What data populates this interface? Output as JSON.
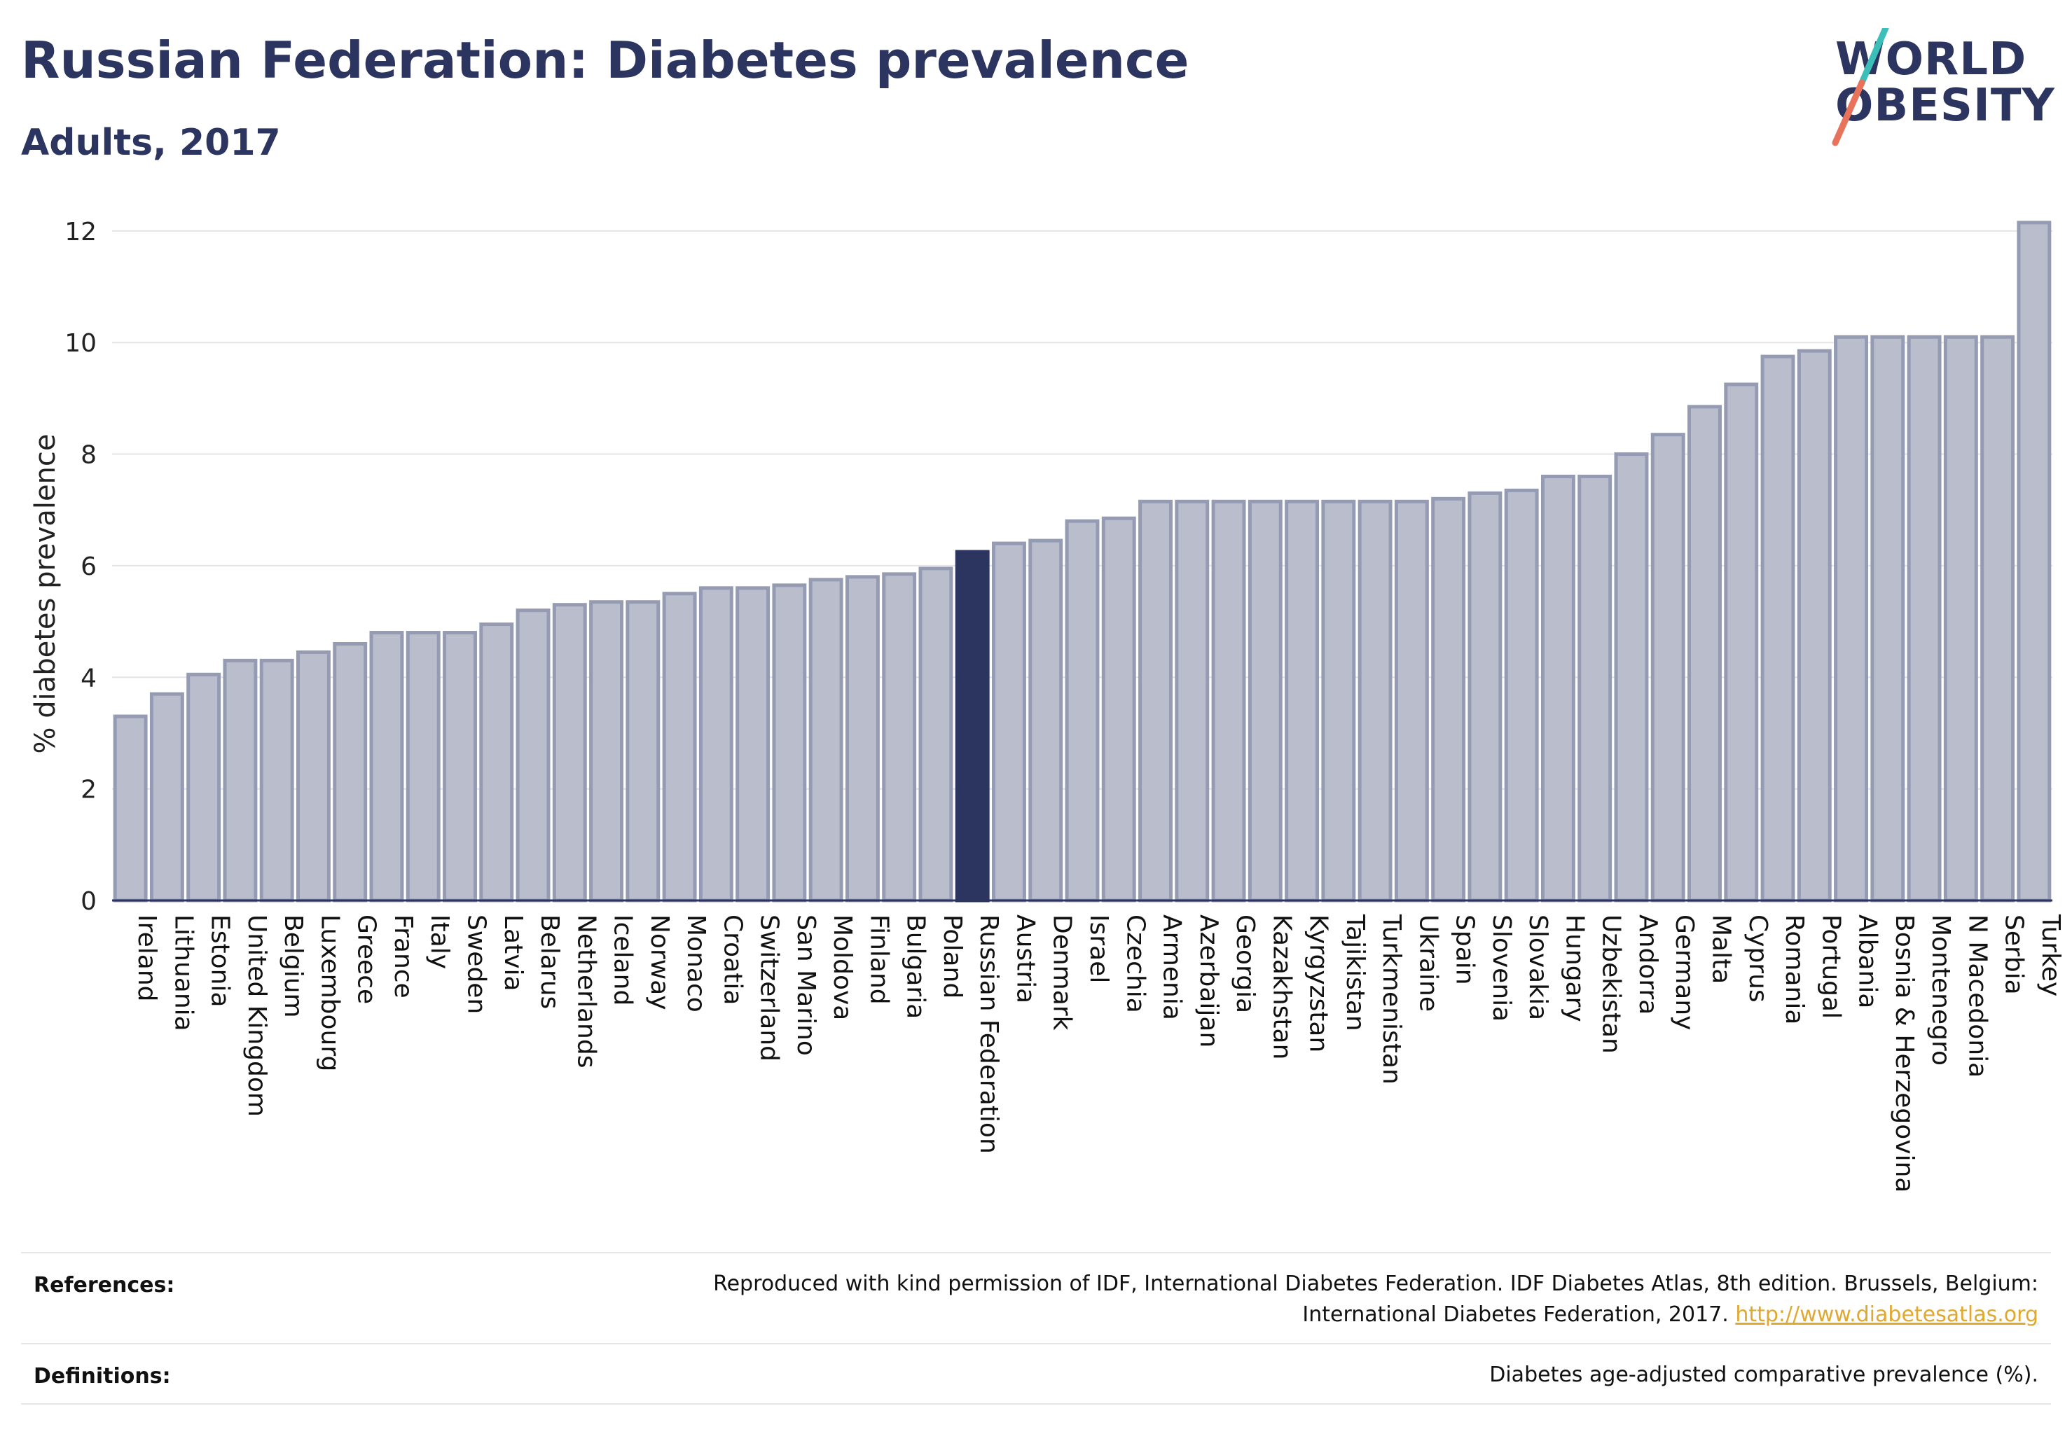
{
  "header": {
    "title": "Russian Federation: Diabetes prevalence",
    "subtitle": "Adults, 2017"
  },
  "logo": {
    "line1": "WORLD",
    "line2": "OBESITY",
    "colors": {
      "text": "#2c3560",
      "slash_top": "#3cbfb9",
      "slash_bottom": "#e8735a"
    }
  },
  "chart_data": {
    "type": "bar",
    "title": "Russian Federation: Diabetes prevalence",
    "subtitle": "Adults, 2017",
    "ylabel": "% diabetes prevalence",
    "xlabel": "",
    "ylim": [
      0,
      12.5
    ],
    "yticks": [
      0,
      2,
      4,
      6,
      8,
      10,
      12
    ],
    "grid": true,
    "highlight": "Russian Federation",
    "colors": {
      "bar": "#b9bdcc",
      "bar_edge": "#959bb3",
      "highlight": "#2c3560",
      "grid": "#e3e3e8",
      "axis": "#2c3560"
    },
    "categories": [
      "Ireland",
      "Lithuania",
      "Estonia",
      "United Kingdom",
      "Belgium",
      "Luxembourg",
      "Greece",
      "France",
      "Italy",
      "Sweden",
      "Latvia",
      "Belarus",
      "Netherlands",
      "Iceland",
      "Norway",
      "Monaco",
      "Croatia",
      "Switzerland",
      "San Marino",
      "Moldova",
      "Finland",
      "Bulgaria",
      "Poland",
      "Russian Federation",
      "Austria",
      "Denmark",
      "Israel",
      "Czechia",
      "Armenia",
      "Azerbaijan",
      "Georgia",
      "Kazakhstan",
      "Kyrgyzstan",
      "Tajikistan",
      "Turkmenistan",
      "Ukraine",
      "Spain",
      "Slovenia",
      "Slovakia",
      "Hungary",
      "Uzbekistan",
      "Andorra",
      "Germany",
      "Malta",
      "Cyprus",
      "Romania",
      "Portugal",
      "Albania",
      "Bosnia & Herzegovina",
      "Montenegro",
      "N Macedonia",
      "Serbia",
      "Turkey"
    ],
    "values": [
      3.3,
      3.7,
      4.05,
      4.3,
      4.3,
      4.45,
      4.6,
      4.8,
      4.8,
      4.8,
      4.95,
      5.2,
      5.3,
      5.35,
      5.35,
      5.5,
      5.6,
      5.6,
      5.65,
      5.75,
      5.8,
      5.85,
      5.95,
      6.25,
      6.4,
      6.45,
      6.8,
      6.85,
      7.15,
      7.15,
      7.15,
      7.15,
      7.15,
      7.15,
      7.15,
      7.15,
      7.2,
      7.3,
      7.35,
      7.6,
      7.6,
      8.0,
      8.35,
      8.85,
      9.25,
      9.75,
      9.85,
      10.1,
      10.1,
      10.1,
      10.1,
      10.1,
      12.15
    ]
  },
  "references": {
    "label": "References:",
    "line1": "Reproduced with kind permission of IDF, International Diabetes Federation. IDF Diabetes Atlas, 8th edition. Brussels, Belgium:",
    "line2": "International Diabetes Federation, 2017.",
    "link": "http://www.diabetesatlas.org"
  },
  "definitions": {
    "label": "Definitions:",
    "text": "Diabetes age-adjusted comparative prevalence (%)."
  }
}
